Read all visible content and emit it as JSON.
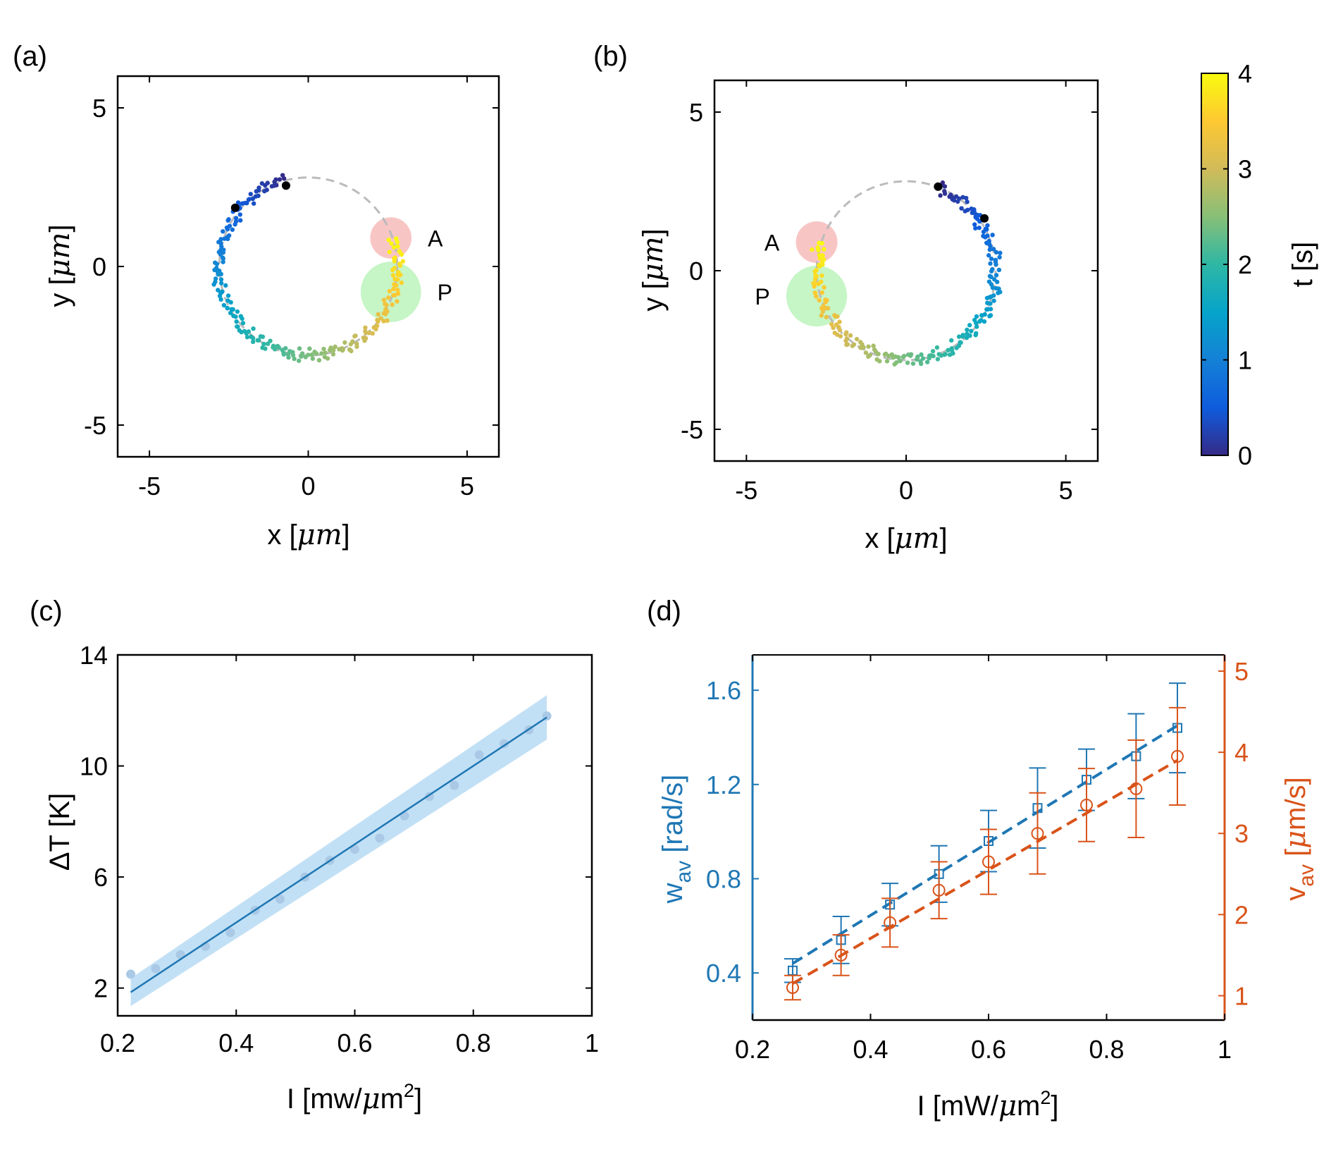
{
  "colors": {
    "blue": "#1f77b4",
    "orange": "#d95319",
    "light_blue": "#aed6f1",
    "marker_A": "#f4a6a6",
    "marker_P": "#a8efa8",
    "dashed_circle": "#bbbbbb"
  },
  "chart_data": [
    {
      "id": "a",
      "panel_label": "(a)",
      "type": "scatter",
      "xlabel_pre": "x [",
      "xlabel_unit": "μm",
      "xlabel_post": "]",
      "ylabel_pre": "y [",
      "ylabel_unit": "μm",
      "ylabel_post": "]",
      "xlim": [
        -6,
        6
      ],
      "ylim": [
        -6,
        6
      ],
      "xticks": [
        -5,
        0,
        5
      ],
      "yticks": [
        -5,
        0,
        5
      ],
      "xtick_labels": [
        "-5",
        "0",
        "5"
      ],
      "ytick_labels": [
        "-5",
        "0",
        "5"
      ],
      "guide_circle": {
        "cx": 0,
        "cy": 0,
        "r": 2.8
      },
      "markers": [
        {
          "label": "A",
          "x": 2.6,
          "y": 0.9,
          "r": 0.65,
          "color": "marker_A"
        },
        {
          "label": "P",
          "x": 2.6,
          "y": -0.8,
          "r": 0.95,
          "color": "marker_P"
        }
      ],
      "trajectory": {
        "start_angle_deg": 105,
        "end_angle_deg": 378,
        "direction": "ccw",
        "t_range": [
          0,
          4
        ],
        "n_points": 230
      },
      "black_dots": [
        {
          "x": -0.7,
          "y": 2.55
        },
        {
          "x": -2.3,
          "y": 1.85
        }
      ]
    },
    {
      "id": "b",
      "panel_label": "(b)",
      "type": "scatter",
      "xlabel_pre": "x [",
      "xlabel_unit": "μm",
      "xlabel_post": "]",
      "ylabel_pre": "y [",
      "ylabel_unit": "μm",
      "ylabel_post": "]",
      "xlim": [
        -6,
        6
      ],
      "ylim": [
        -6,
        6
      ],
      "xticks": [
        -5,
        0,
        5
      ],
      "yticks": [
        -5,
        0,
        5
      ],
      "xtick_labels": [
        "-5",
        "0",
        "5"
      ],
      "ytick_labels": [
        "-5",
        "0",
        "5"
      ],
      "guide_circle": {
        "cx": 0,
        "cy": 0,
        "r": 2.8
      },
      "markers": [
        {
          "label": "A",
          "x": -2.8,
          "y": 0.9,
          "r": 0.65,
          "color": "marker_A"
        },
        {
          "label": "P",
          "x": -2.8,
          "y": -0.8,
          "r": 0.95,
          "color": "marker_P"
        }
      ],
      "trajectory": {
        "start_angle_deg": 68,
        "end_angle_deg": -198,
        "direction": "cw",
        "t_range": [
          0,
          4
        ],
        "n_points": 230
      },
      "black_dots": [
        {
          "x": 1.0,
          "y": 2.65
        },
        {
          "x": 2.45,
          "y": 1.65
        }
      ]
    },
    {
      "id": "colorbar",
      "type": "colorbar",
      "label": "t [s]",
      "range": [
        0,
        4
      ],
      "ticks": [
        "0",
        "1",
        "2",
        "3",
        "4"
      ],
      "colormap": "parula"
    },
    {
      "id": "c",
      "panel_label": "(c)",
      "type": "scatter",
      "xlabel_pre": "I [mw/",
      "xlabel_unit": "μ",
      "xlabel_post": "m",
      "xlabel_sup": "2",
      "xlabel_end": "]",
      "ylabel": "ΔT [K]",
      "xlim": [
        0.2,
        1.0
      ],
      "ylim": [
        1,
        14
      ],
      "xticks": [
        0.2,
        0.4,
        0.6,
        0.8,
        1.0
      ],
      "xtick_labels": [
        "0.2",
        "0.4",
        "0.6",
        "0.8",
        "1"
      ],
      "yticks": [
        2,
        6,
        10,
        14
      ],
      "ytick_labels": [
        "2",
        "6",
        "10",
        "14"
      ],
      "x": [
        0.222,
        0.264,
        0.306,
        0.348,
        0.39,
        0.432,
        0.474,
        0.516,
        0.558,
        0.6,
        0.642,
        0.684,
        0.726,
        0.768,
        0.81,
        0.852,
        0.894,
        0.924
      ],
      "y": [
        2.5,
        2.7,
        3.2,
        3.5,
        4.0,
        4.8,
        5.2,
        6.0,
        6.6,
        7.0,
        7.4,
        8.2,
        8.9,
        9.3,
        10.4,
        10.8,
        11.3,
        11.8
      ],
      "fit": {
        "x": [
          0.222,
          0.924
        ],
        "y": [
          1.85,
          11.75
        ]
      },
      "band": {
        "x": [
          0.222,
          0.924
        ],
        "lower": [
          1.35,
          10.95
        ],
        "upper": [
          2.35,
          12.55
        ]
      }
    },
    {
      "id": "d",
      "panel_label": "(d)",
      "type": "line",
      "xlabel_pre": "I [mW/",
      "xlabel_unit": "μ",
      "xlabel_post": "m",
      "xlabel_sup": "2",
      "xlabel_end": "]",
      "xlim": [
        0.2,
        1.0
      ],
      "xticks": [
        0.2,
        0.4,
        0.6,
        0.8,
        1.0
      ],
      "xtick_labels": [
        "0.2",
        "0.4",
        "0.6",
        "0.8",
        "1"
      ],
      "left_axis": {
        "label_main": "w",
        "label_sub": "av",
        "label_rest": " [rad/s]",
        "lim": [
          0.2,
          1.75
        ],
        "ticks": [
          0.4,
          0.8,
          1.2,
          1.6
        ],
        "tick_labels": [
          "0.4",
          "0.8",
          "1.2",
          "1.6"
        ]
      },
      "right_axis": {
        "label_main": "v",
        "label_sub": "av",
        "label_rest_pre": " [",
        "label_unit": "μ",
        "label_rest_post": "m/s]",
        "lim": [
          0.7,
          5.2
        ],
        "ticks": [
          1,
          2,
          3,
          4,
          5
        ],
        "tick_labels": [
          "1",
          "2",
          "3",
          "4",
          "5"
        ]
      },
      "x": [
        0.268,
        0.35,
        0.433,
        0.516,
        0.6,
        0.683,
        0.766,
        0.85,
        0.92
      ],
      "series": [
        {
          "axis": "left",
          "marker": "square",
          "color": "blue",
          "values": [
            0.41,
            0.54,
            0.69,
            0.82,
            0.96,
            1.1,
            1.22,
            1.32,
            1.44
          ],
          "err": [
            0.05,
            0.1,
            0.09,
            0.12,
            0.13,
            0.17,
            0.13,
            0.18,
            0.19
          ],
          "fit": [
            0.44,
            1.45
          ]
        },
        {
          "axis": "right",
          "marker": "circle",
          "color": "orange",
          "values": [
            1.1,
            1.5,
            1.9,
            2.3,
            2.65,
            3.0,
            3.35,
            3.55,
            3.95
          ],
          "err": [
            0.15,
            0.25,
            0.3,
            0.35,
            0.4,
            0.5,
            0.45,
            0.6,
            0.6
          ],
          "fit": [
            1.15,
            3.9
          ]
        }
      ]
    }
  ]
}
